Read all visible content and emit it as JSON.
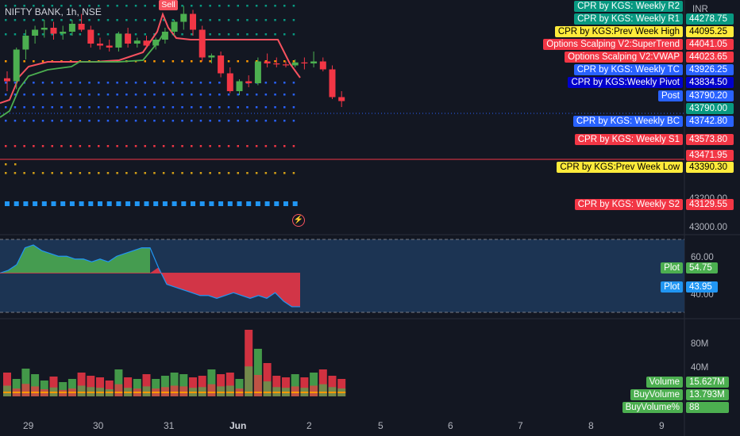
{
  "symbol": {
    "title": "NIFTY BANK, 1h, NSE"
  },
  "markers": {
    "sell": "Sell",
    "flash_icon": "lightning-icon"
  },
  "currency": "INR",
  "price_axis": [
    "43200.00",
    "43000.00"
  ],
  "osc_axis": [
    "60.00",
    "40.00"
  ],
  "volume_axis": [
    "80M",
    "40M"
  ],
  "dates": [
    "29",
    "30",
    "31",
    "Jun",
    "2",
    "5",
    "6",
    "7",
    "8",
    "9"
  ],
  "levels": [
    {
      "label": "CPR by KGS: Weekly R2",
      "value": "",
      "bg": "#089981",
      "fg": "#ffffff"
    },
    {
      "label": "CPR by KGS: Weekly R1",
      "value": "44278.75",
      "bg": "#089981",
      "fg": "#ffffff"
    },
    {
      "label": "CPR by KGS:Prev Week High",
      "value": "44095.25",
      "bg": "#ffeb3b",
      "fg": "#000000"
    },
    {
      "label": "Options Scalping V2:SuperTrend",
      "value": "44041.05",
      "bg": "#f23645",
      "fg": "#ffffff"
    },
    {
      "label": "Options Scalping V2:VWAP",
      "value": "44023.65",
      "bg": "#f23645",
      "fg": "#ffffff"
    },
    {
      "label": "CPR by KGS: Weekly TC",
      "value": "43926.25",
      "bg": "#2962ff",
      "fg": "#ffffff"
    },
    {
      "label": "CPR by KGS:Weekly Pivot",
      "value": "43834.50",
      "bg": "#0000cc",
      "fg": "#ffffff"
    },
    {
      "label": "Post",
      "value": "43790.20",
      "bg": "#2962ff",
      "fg": "#ffffff"
    },
    {
      "label": "",
      "value": "43790.00",
      "bg": "#089981",
      "fg": "#ffffff"
    },
    {
      "label": "CPR by KGS: Weekly BC",
      "value": "43742.80",
      "bg": "#2962ff",
      "fg": "#ffffff"
    },
    {
      "label": "CPR by KGS: Weekly S1",
      "value": "43573.80",
      "bg": "#f23645",
      "fg": "#ffffff"
    },
    {
      "label": "",
      "value": "43471.95",
      "bg": "#f23645",
      "fg": "#ffffff"
    },
    {
      "label": "CPR by KGS:Prev Week Low",
      "value": "43390.30",
      "bg": "#ffeb3b",
      "fg": "#000000"
    },
    {
      "label": "CPR by KGS: Weekly S2",
      "value": "43129.55",
      "bg": "#f23645",
      "fg": "#ffffff"
    }
  ],
  "osc_labels": [
    {
      "label": "Plot",
      "value": "54.75",
      "bg": "#4caf50"
    },
    {
      "label": "Plot",
      "value": "43.95",
      "bg": "#2196f3"
    }
  ],
  "volume_labels": [
    {
      "label": "Volume",
      "value": "15.627M"
    },
    {
      "label": "BuyVolume",
      "value": "13.793M"
    },
    {
      "label": "BuyVolume%",
      "value": "88"
    }
  ],
  "chart_data": {
    "type": "candlestick",
    "candles": [
      {
        "o": 43905,
        "h": 43940,
        "l": 43840,
        "c": 43890
      },
      {
        "o": 43890,
        "h": 44060,
        "l": 43850,
        "c": 44050
      },
      {
        "o": 44050,
        "h": 44150,
        "l": 44000,
        "c": 44120
      },
      {
        "o": 44120,
        "h": 44170,
        "l": 44080,
        "c": 44150
      },
      {
        "o": 44150,
        "h": 44200,
        "l": 44110,
        "c": 44160
      },
      {
        "o": 44160,
        "h": 44190,
        "l": 44100,
        "c": 44130
      },
      {
        "o": 44130,
        "h": 44170,
        "l": 44100,
        "c": 44140
      },
      {
        "o": 44140,
        "h": 44200,
        "l": 44120,
        "c": 44180
      },
      {
        "o": 44180,
        "h": 44230,
        "l": 44140,
        "c": 44150
      },
      {
        "o": 44150,
        "h": 44170,
        "l": 44060,
        "c": 44080
      },
      {
        "o": 44080,
        "h": 44110,
        "l": 44050,
        "c": 44070
      },
      {
        "o": 44070,
        "h": 44100,
        "l": 44040,
        "c": 44060
      },
      {
        "o": 44060,
        "h": 44140,
        "l": 44040,
        "c": 44130
      },
      {
        "o": 44130,
        "h": 44160,
        "l": 44060,
        "c": 44080
      },
      {
        "o": 44080,
        "h": 44110,
        "l": 44060,
        "c": 44095
      },
      {
        "o": 44095,
        "h": 44120,
        "l": 44060,
        "c": 44070
      },
      {
        "o": 44070,
        "h": 44110,
        "l": 44050,
        "c": 44100
      },
      {
        "o": 44100,
        "h": 44160,
        "l": 44080,
        "c": 44140
      },
      {
        "o": 44140,
        "h": 44200,
        "l": 44120,
        "c": 44190
      },
      {
        "o": 44190,
        "h": 44270,
        "l": 44150,
        "c": 44230
      },
      {
        "o": 44230,
        "h": 44250,
        "l": 44120,
        "c": 44150
      },
      {
        "o": 44150,
        "h": 44170,
        "l": 43990,
        "c": 44010
      },
      {
        "o": 44010,
        "h": 44030,
        "l": 43980,
        "c": 44020
      },
      {
        "o": 44020,
        "h": 44040,
        "l": 43910,
        "c": 43930
      },
      {
        "o": 43930,
        "h": 43960,
        "l": 43830,
        "c": 43840
      },
      {
        "o": 43840,
        "h": 43900,
        "l": 43820,
        "c": 43890
      },
      {
        "o": 43890,
        "h": 43920,
        "l": 43860,
        "c": 43880
      },
      {
        "o": 43880,
        "h": 44010,
        "l": 43870,
        "c": 43990
      },
      {
        "o": 43990,
        "h": 44030,
        "l": 43960,
        "c": 43980
      },
      {
        "o": 43980,
        "h": 44010,
        "l": 43960,
        "c": 43975
      },
      {
        "o": 43975,
        "h": 43990,
        "l": 43960,
        "c": 43970
      },
      {
        "o": 43970,
        "h": 44000,
        "l": 43960,
        "c": 43985
      },
      {
        "o": 43985,
        "h": 44010,
        "l": 43950,
        "c": 43980
      },
      {
        "o": 43980,
        "h": 44040,
        "l": 43960,
        "c": 43990
      },
      {
        "o": 43990,
        "h": 44010,
        "l": 43940,
        "c": 43950
      },
      {
        "o": 43950,
        "h": 43970,
        "l": 43800,
        "c": 43810
      },
      {
        "o": 43810,
        "h": 43840,
        "l": 43760,
        "c": 43790
      }
    ],
    "oscillator": [
      52,
      53,
      55,
      61,
      62,
      60,
      59,
      58,
      58,
      57,
      57,
      56,
      57,
      56,
      58,
      59,
      60,
      61,
      61,
      54,
      48,
      47,
      46,
      45,
      44,
      44,
      43,
      44,
      45,
      44,
      43,
      44,
      43,
      45,
      42,
      40,
      40
    ]
  }
}
